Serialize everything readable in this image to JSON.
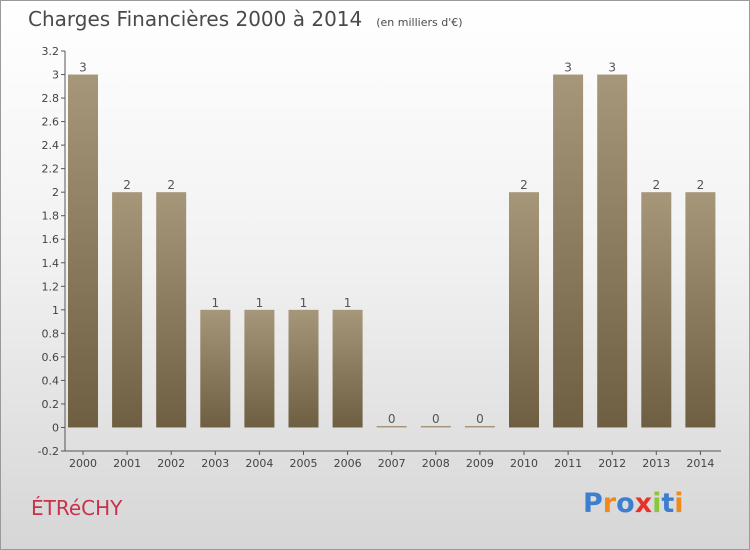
{
  "header": {
    "title": "Charges Financières 2000 à 2014",
    "subtitle": "(en milliers d'€)"
  },
  "footer": {
    "commune": "ÉTRéCHY",
    "brand": "Proxiti"
  },
  "colors": {
    "bar_top": "#a7977a",
    "bar_bottom": "#6e5e42",
    "commune": "#c8324b",
    "axis": "#555555"
  },
  "chart_data": {
    "type": "bar",
    "title": "Charges Financières 2000 à 2014",
    "subtitle": "(en milliers d'€)",
    "categories": [
      "2000",
      "2001",
      "2002",
      "2003",
      "2004",
      "2005",
      "2006",
      "2007",
      "2008",
      "2009",
      "2010",
      "2011",
      "2012",
      "2013",
      "2014"
    ],
    "values": [
      3,
      2,
      2,
      1,
      1,
      1,
      1,
      0,
      0,
      0,
      2,
      3,
      3,
      2,
      2
    ],
    "data_labels": [
      "3",
      "2",
      "2",
      "1",
      "1",
      "1",
      "1",
      "0",
      "0",
      "0",
      "2",
      "3",
      "3",
      "2",
      "2"
    ],
    "yticks": [
      "-0.2",
      "0",
      "0.2",
      "0.4",
      "0.6",
      "0.8",
      "1",
      "1.2",
      "1.4",
      "1.6",
      "1.8",
      "2",
      "2.2",
      "2.4",
      "2.6",
      "2.8",
      "3",
      "3.2"
    ],
    "ylim": [
      -0.2,
      3.2
    ],
    "grid": false,
    "legend": "none"
  }
}
